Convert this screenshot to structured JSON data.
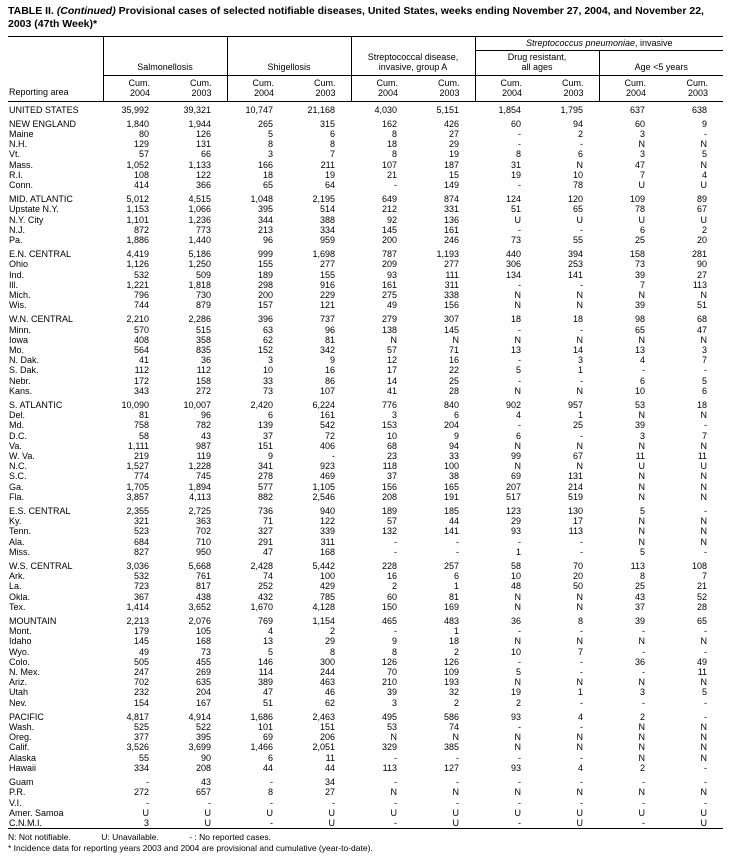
{
  "title": {
    "label": "TABLE II.",
    "continued": "(Continued)",
    "text": "Provisional cases of selected notifiable diseases, United States, weeks ending November 27, 2004, and November 22, 2003 (47th Week)*"
  },
  "table": {
    "header": {
      "reporting_area": "Reporting area",
      "salmonellosis": "Salmonellosis",
      "shigellosis": "Shigellosis",
      "strep_a_line1": "Streptococcal disease,",
      "strep_a_line2": "invasive, group A",
      "pneu_italic": "Streptococcus pneumoniae",
      "pneu_rest": ", invasive",
      "drug_line1": "Drug resistant,",
      "drug_line2": "all ages",
      "age_label": "Age <5 years",
      "cum_label": "Cum.",
      "year_2004": "2004",
      "year_2003": "2003"
    },
    "rows": [
      {
        "area": "UNITED STATES",
        "v": [
          "35,992",
          "39,321",
          "10,747",
          "21,168",
          "4,030",
          "5,151",
          "1,854",
          "1,795",
          "637",
          "638"
        ]
      },
      {
        "spacer": true
      },
      {
        "area": "NEW ENGLAND",
        "v": [
          "1,840",
          "1,944",
          "265",
          "315",
          "162",
          "426",
          "60",
          "94",
          "60",
          "9"
        ]
      },
      {
        "area": "Maine",
        "v": [
          "80",
          "126",
          "5",
          "6",
          "8",
          "27",
          "-",
          "2",
          "3",
          "-"
        ]
      },
      {
        "area": "N.H.",
        "v": [
          "129",
          "131",
          "8",
          "8",
          "18",
          "29",
          "-",
          "-",
          "N",
          "N"
        ]
      },
      {
        "area": "Vt.",
        "v": [
          "57",
          "66",
          "3",
          "7",
          "8",
          "19",
          "8",
          "6",
          "3",
          "5"
        ]
      },
      {
        "area": "Mass.",
        "v": [
          "1,052",
          "1,133",
          "166",
          "211",
          "107",
          "187",
          "31",
          "N",
          "47",
          "N"
        ]
      },
      {
        "area": "R.I.",
        "v": [
          "108",
          "122",
          "18",
          "19",
          "21",
          "15",
          "19",
          "10",
          "7",
          "4"
        ]
      },
      {
        "area": "Conn.",
        "v": [
          "414",
          "366",
          "65",
          "64",
          "-",
          "149",
          "-",
          "78",
          "U",
          "U"
        ]
      },
      {
        "spacer": true
      },
      {
        "area": "MID. ATLANTIC",
        "v": [
          "5,012",
          "4,515",
          "1,048",
          "2,195",
          "649",
          "874",
          "124",
          "120",
          "109",
          "89"
        ]
      },
      {
        "area": "Upstate N.Y.",
        "v": [
          "1,153",
          "1,066",
          "395",
          "514",
          "212",
          "331",
          "51",
          "65",
          "78",
          "67"
        ]
      },
      {
        "area": "N.Y. City",
        "v": [
          "1,101",
          "1,236",
          "344",
          "388",
          "92",
          "136",
          "U",
          "U",
          "U",
          "U"
        ]
      },
      {
        "area": "N.J.",
        "v": [
          "872",
          "773",
          "213",
          "334",
          "145",
          "161",
          "-",
          "-",
          "6",
          "2"
        ]
      },
      {
        "area": "Pa.",
        "v": [
          "1,886",
          "1,440",
          "96",
          "959",
          "200",
          "246",
          "73",
          "55",
          "25",
          "20"
        ]
      },
      {
        "spacer": true
      },
      {
        "area": "E.N. CENTRAL",
        "v": [
          "4,419",
          "5,186",
          "999",
          "1,698",
          "787",
          "1,193",
          "440",
          "394",
          "158",
          "281"
        ]
      },
      {
        "area": "Ohio",
        "v": [
          "1,126",
          "1,250",
          "155",
          "277",
          "209",
          "277",
          "306",
          "253",
          "73",
          "90"
        ]
      },
      {
        "area": "Ind.",
        "v": [
          "532",
          "509",
          "189",
          "155",
          "93",
          "111",
          "134",
          "141",
          "39",
          "27"
        ]
      },
      {
        "area": "Ill.",
        "v": [
          "1,221",
          "1,818",
          "298",
          "916",
          "161",
          "311",
          "-",
          "-",
          "7",
          "113"
        ]
      },
      {
        "area": "Mich.",
        "v": [
          "796",
          "730",
          "200",
          "229",
          "275",
          "338",
          "N",
          "N",
          "N",
          "N"
        ]
      },
      {
        "area": "Wis.",
        "v": [
          "744",
          "879",
          "157",
          "121",
          "49",
          "156",
          "N",
          "N",
          "39",
          "51"
        ]
      },
      {
        "spacer": true
      },
      {
        "area": "W.N. CENTRAL",
        "v": [
          "2,210",
          "2,286",
          "396",
          "737",
          "279",
          "307",
          "18",
          "18",
          "98",
          "68"
        ]
      },
      {
        "area": "Minn.",
        "v": [
          "570",
          "515",
          "63",
          "96",
          "138",
          "145",
          "-",
          "-",
          "65",
          "47"
        ]
      },
      {
        "area": "Iowa",
        "v": [
          "408",
          "358",
          "62",
          "81",
          "N",
          "N",
          "N",
          "N",
          "N",
          "N"
        ]
      },
      {
        "area": "Mo.",
        "v": [
          "564",
          "835",
          "152",
          "342",
          "57",
          "71",
          "13",
          "14",
          "13",
          "3"
        ]
      },
      {
        "area": "N. Dak.",
        "v": [
          "41",
          "36",
          "3",
          "9",
          "12",
          "16",
          "-",
          "3",
          "4",
          "7"
        ]
      },
      {
        "area": "S. Dak.",
        "v": [
          "112",
          "112",
          "10",
          "16",
          "17",
          "22",
          "5",
          "1",
          "-",
          "-"
        ]
      },
      {
        "area": "Nebr.",
        "v": [
          "172",
          "158",
          "33",
          "86",
          "14",
          "25",
          "-",
          "-",
          "6",
          "5"
        ]
      },
      {
        "area": "Kans.",
        "v": [
          "343",
          "272",
          "73",
          "107",
          "41",
          "28",
          "N",
          "N",
          "10",
          "6"
        ]
      },
      {
        "spacer": true
      },
      {
        "area": "S. ATLANTIC",
        "v": [
          "10,090",
          "10,007",
          "2,420",
          "6,224",
          "776",
          "840",
          "902",
          "957",
          "53",
          "18"
        ]
      },
      {
        "area": "Del.",
        "v": [
          "81",
          "96",
          "6",
          "161",
          "3",
          "6",
          "4",
          "1",
          "N",
          "N"
        ]
      },
      {
        "area": "Md.",
        "v": [
          "758",
          "782",
          "139",
          "542",
          "153",
          "204",
          "-",
          "25",
          "39",
          "-"
        ]
      },
      {
        "area": "D.C.",
        "v": [
          "58",
          "43",
          "37",
          "72",
          "10",
          "9",
          "6",
          "-",
          "3",
          "7"
        ]
      },
      {
        "area": "Va.",
        "v": [
          "1,111",
          "987",
          "151",
          "406",
          "68",
          "94",
          "N",
          "N",
          "N",
          "N"
        ]
      },
      {
        "area": "W. Va.",
        "v": [
          "219",
          "119",
          "9",
          "-",
          "23",
          "33",
          "99",
          "67",
          "11",
          "11"
        ]
      },
      {
        "area": "N.C.",
        "v": [
          "1,527",
          "1,228",
          "341",
          "923",
          "118",
          "100",
          "N",
          "N",
          "U",
          "U"
        ]
      },
      {
        "area": "S.C.",
        "v": [
          "774",
          "745",
          "278",
          "469",
          "37",
          "38",
          "69",
          "131",
          "N",
          "N"
        ]
      },
      {
        "area": "Ga.",
        "v": [
          "1,705",
          "1,894",
          "577",
          "1,105",
          "156",
          "165",
          "207",
          "214",
          "N",
          "N"
        ]
      },
      {
        "area": "Fla.",
        "v": [
          "3,857",
          "4,113",
          "882",
          "2,546",
          "208",
          "191",
          "517",
          "519",
          "N",
          "N"
        ]
      },
      {
        "spacer": true
      },
      {
        "area": "E.S. CENTRAL",
        "v": [
          "2,355",
          "2,725",
          "736",
          "940",
          "189",
          "185",
          "123",
          "130",
          "5",
          "-"
        ]
      },
      {
        "area": "Ky.",
        "v": [
          "321",
          "363",
          "71",
          "122",
          "57",
          "44",
          "29",
          "17",
          "N",
          "N"
        ]
      },
      {
        "area": "Tenn.",
        "v": [
          "523",
          "702",
          "327",
          "339",
          "132",
          "141",
          "93",
          "113",
          "N",
          "N"
        ]
      },
      {
        "area": "Ala.",
        "v": [
          "684",
          "710",
          "291",
          "311",
          "-",
          "-",
          "-",
          "-",
          "N",
          "N"
        ]
      },
      {
        "area": "Miss.",
        "v": [
          "827",
          "950",
          "47",
          "168",
          "-",
          "-",
          "1",
          "-",
          "5",
          "-"
        ]
      },
      {
        "spacer": true
      },
      {
        "area": "W.S. CENTRAL",
        "v": [
          "3,036",
          "5,668",
          "2,428",
          "5,442",
          "228",
          "257",
          "58",
          "70",
          "113",
          "108"
        ]
      },
      {
        "area": "Ark.",
        "v": [
          "532",
          "761",
          "74",
          "100",
          "16",
          "6",
          "10",
          "20",
          "8",
          "7"
        ]
      },
      {
        "area": "La.",
        "v": [
          "723",
          "817",
          "252",
          "429",
          "2",
          "1",
          "48",
          "50",
          "25",
          "21"
        ]
      },
      {
        "area": "Okla.",
        "v": [
          "367",
          "438",
          "432",
          "785",
          "60",
          "81",
          "N",
          "N",
          "43",
          "52"
        ]
      },
      {
        "area": "Tex.",
        "v": [
          "1,414",
          "3,652",
          "1,670",
          "4,128",
          "150",
          "169",
          "N",
          "N",
          "37",
          "28"
        ]
      },
      {
        "spacer": true
      },
      {
        "area": "MOUNTAIN",
        "v": [
          "2,213",
          "2,076",
          "769",
          "1,154",
          "465",
          "483",
          "36",
          "8",
          "39",
          "65"
        ]
      },
      {
        "area": "Mont.",
        "v": [
          "179",
          "105",
          "4",
          "2",
          "-",
          "1",
          "-",
          "-",
          "-",
          "-"
        ]
      },
      {
        "area": "Idaho",
        "v": [
          "145",
          "168",
          "13",
          "29",
          "9",
          "18",
          "N",
          "N",
          "N",
          "N"
        ]
      },
      {
        "area": "Wyo.",
        "v": [
          "49",
          "73",
          "5",
          "8",
          "8",
          "2",
          "10",
          "7",
          "-",
          "-"
        ]
      },
      {
        "area": "Colo.",
        "v": [
          "505",
          "455",
          "146",
          "300",
          "126",
          "126",
          "-",
          "-",
          "36",
          "49"
        ]
      },
      {
        "area": "N. Mex.",
        "v": [
          "247",
          "269",
          "114",
          "244",
          "70",
          "109",
          "5",
          "-",
          "-",
          "11"
        ]
      },
      {
        "area": "Ariz.",
        "v": [
          "702",
          "635",
          "389",
          "463",
          "210",
          "193",
          "N",
          "N",
          "N",
          "N"
        ]
      },
      {
        "area": "Utah",
        "v": [
          "232",
          "204",
          "47",
          "46",
          "39",
          "32",
          "19",
          "1",
          "3",
          "5"
        ]
      },
      {
        "area": "Nev.",
        "v": [
          "154",
          "167",
          "51",
          "62",
          "3",
          "2",
          "2",
          "-",
          "-",
          "-"
        ]
      },
      {
        "spacer": true
      },
      {
        "area": "PACIFIC",
        "v": [
          "4,817",
          "4,914",
          "1,686",
          "2,463",
          "495",
          "586",
          "93",
          "4",
          "2",
          "-"
        ]
      },
      {
        "area": "Wash.",
        "v": [
          "525",
          "522",
          "101",
          "151",
          "53",
          "74",
          "-",
          "-",
          "N",
          "N"
        ]
      },
      {
        "area": "Oreg.",
        "v": [
          "377",
          "395",
          "69",
          "206",
          "N",
          "N",
          "N",
          "N",
          "N",
          "N"
        ]
      },
      {
        "area": "Calif.",
        "v": [
          "3,526",
          "3,699",
          "1,466",
          "2,051",
          "329",
          "385",
          "N",
          "N",
          "N",
          "N"
        ]
      },
      {
        "area": "Alaska",
        "v": [
          "55",
          "90",
          "6",
          "11",
          "-",
          "-",
          "-",
          "-",
          "N",
          "N"
        ]
      },
      {
        "area": "Hawaii",
        "v": [
          "334",
          "208",
          "44",
          "44",
          "113",
          "127",
          "93",
          "4",
          "2",
          "-"
        ]
      },
      {
        "spacer": true
      },
      {
        "area": "Guam",
        "v": [
          "-",
          "43",
          "-",
          "34",
          "-",
          "-",
          "-",
          "-",
          "-",
          "-"
        ]
      },
      {
        "area": "P.R.",
        "v": [
          "272",
          "657",
          "8",
          "27",
          "N",
          "N",
          "N",
          "N",
          "N",
          "N"
        ]
      },
      {
        "area": "V.I.",
        "v": [
          "-",
          "-",
          "-",
          "-",
          "-",
          "-",
          "-",
          "-",
          "-",
          "-"
        ]
      },
      {
        "area": "Amer. Samoa",
        "v": [
          "U",
          "U",
          "U",
          "U",
          "U",
          "U",
          "U",
          "U",
          "U",
          "U"
        ]
      },
      {
        "area": "C.N.M.I.",
        "v": [
          "3",
          "U",
          "-",
          "U",
          "-",
          "U",
          "-",
          "U",
          "-",
          "U"
        ]
      }
    ]
  },
  "footnotes": {
    "legend": [
      "N: Not notifiable.",
      "U: Unavailable.",
      "- : No reported cases."
    ],
    "incidence": "* Incidence data for reporting years 2003 and 2004 are provisional and cumulative (year-to-date)."
  }
}
